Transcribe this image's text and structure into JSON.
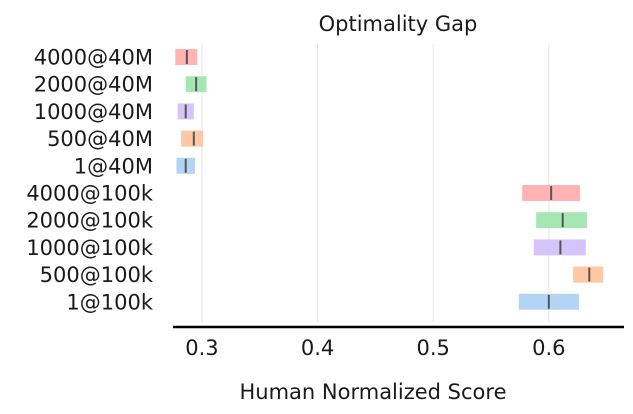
{
  "chart_data": {
    "type": "interval",
    "title": "Optimality Gap",
    "xlabel": "Human Normalized Score",
    "xlim": [
      0.275,
      0.665
    ],
    "xticks": [
      0.3,
      0.4,
      0.5,
      0.6
    ],
    "xtick_labels": [
      "0.3",
      "0.4",
      "0.5",
      "0.6"
    ],
    "grid": true,
    "categories": [
      "4000@40M",
      "2000@40M",
      "1000@40M",
      "500@40M",
      "1@40M",
      "4000@100k",
      "2000@100k",
      "1000@100k",
      "500@100k",
      "1@100k"
    ],
    "intervals": [
      {
        "low": 0.277,
        "high": 0.296,
        "point": 0.287
      },
      {
        "low": 0.286,
        "high": 0.304,
        "point": 0.295
      },
      {
        "low": 0.279,
        "high": 0.293,
        "point": 0.286
      },
      {
        "low": 0.282,
        "high": 0.301,
        "point": 0.293
      },
      {
        "low": 0.278,
        "high": 0.294,
        "point": 0.286
      },
      {
        "low": 0.577,
        "high": 0.627,
        "point": 0.602
      },
      {
        "low": 0.589,
        "high": 0.633,
        "point": 0.612
      },
      {
        "low": 0.587,
        "high": 0.632,
        "point": 0.61
      },
      {
        "low": 0.621,
        "high": 0.647,
        "point": 0.635
      },
      {
        "low": 0.574,
        "high": 0.626,
        "point": 0.6
      }
    ],
    "colors": [
      "#ffb3b3",
      "#a6e6b3",
      "#d4c4fa",
      "#ffc8a3",
      "#b3d4f2",
      "#ffb3b3",
      "#a6e6b3",
      "#d4c4fa",
      "#ffc8a3",
      "#b3d4f2"
    ]
  }
}
